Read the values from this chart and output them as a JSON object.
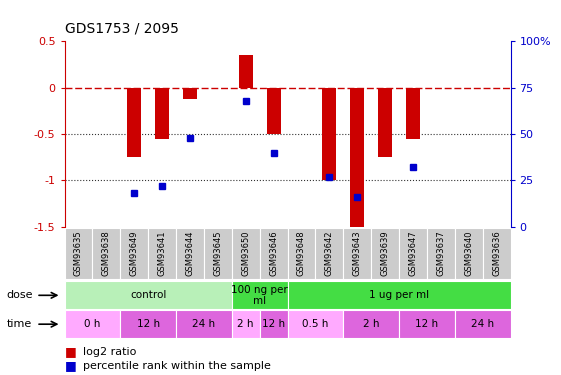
{
  "title": "GDS1753 / 2095",
  "samples": [
    "GSM93635",
    "GSM93638",
    "GSM93649",
    "GSM93641",
    "GSM93644",
    "GSM93645",
    "GSM93650",
    "GSM93646",
    "GSM93648",
    "GSM93642",
    "GSM93643",
    "GSM93639",
    "GSM93647",
    "GSM93637",
    "GSM93640",
    "GSM93636"
  ],
  "log2_ratio": [
    0,
    0,
    -0.75,
    -0.55,
    -0.12,
    0,
    0.35,
    -0.5,
    0,
    -1.0,
    -1.5,
    -0.75,
    -0.55,
    0,
    0,
    0
  ],
  "percentile": [
    null,
    null,
    18,
    22,
    48,
    null,
    68,
    40,
    null,
    27,
    16,
    null,
    32,
    null,
    null,
    null
  ],
  "ylim_left": [
    -1.5,
    0.5
  ],
  "ylim_right": [
    0,
    100
  ],
  "dose_groups": [
    {
      "label": "control",
      "start": 0,
      "end": 6,
      "color": "#b8f0b8"
    },
    {
      "label": "100 ng per\nml",
      "start": 6,
      "end": 8,
      "color": "#44dd44"
    },
    {
      "label": "1 ug per ml",
      "start": 8,
      "end": 16,
      "color": "#44dd44"
    }
  ],
  "time_groups": [
    {
      "label": "0 h",
      "start": 0,
      "end": 2,
      "color": "#ffaaff"
    },
    {
      "label": "12 h",
      "start": 2,
      "end": 4,
      "color": "#dd66dd"
    },
    {
      "label": "24 h",
      "start": 4,
      "end": 6,
      "color": "#dd66dd"
    },
    {
      "label": "2 h",
      "start": 6,
      "end": 7,
      "color": "#ffaaff"
    },
    {
      "label": "12 h",
      "start": 7,
      "end": 8,
      "color": "#dd66dd"
    },
    {
      "label": "0.5 h",
      "start": 8,
      "end": 10,
      "color": "#ffaaff"
    },
    {
      "label": "2 h",
      "start": 10,
      "end": 12,
      "color": "#dd66dd"
    },
    {
      "label": "12 h",
      "start": 12,
      "end": 14,
      "color": "#dd66dd"
    },
    {
      "label": "24 h",
      "start": 14,
      "end": 16,
      "color": "#dd66dd"
    }
  ],
  "bar_color": "#cc0000",
  "dot_color": "#0000cc",
  "ref_line_color": "#cc0000",
  "background_color": "#ffffff",
  "dotted_line_color": "#333333",
  "tick_box_color": "#cccccc",
  "n_samples": 16
}
